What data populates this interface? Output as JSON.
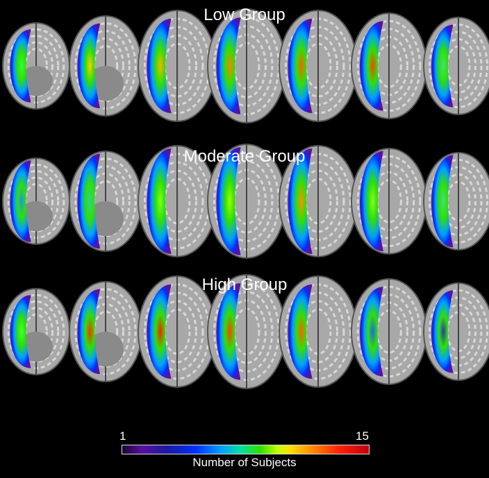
{
  "groups": [
    {
      "title": "Low Group"
    },
    {
      "title": "Moderate Group"
    },
    {
      "title": "High Group"
    }
  ],
  "colorbar": {
    "min_label": "1",
    "max_label": "15",
    "label": "Number of Subjects",
    "colors": [
      "#1a0530",
      "#5a10a0",
      "#0030ff",
      "#00a0ff",
      "#00e0a0",
      "#30e000",
      "#ffe000",
      "#ff8000",
      "#ff2000",
      "#c00010"
    ]
  }
}
